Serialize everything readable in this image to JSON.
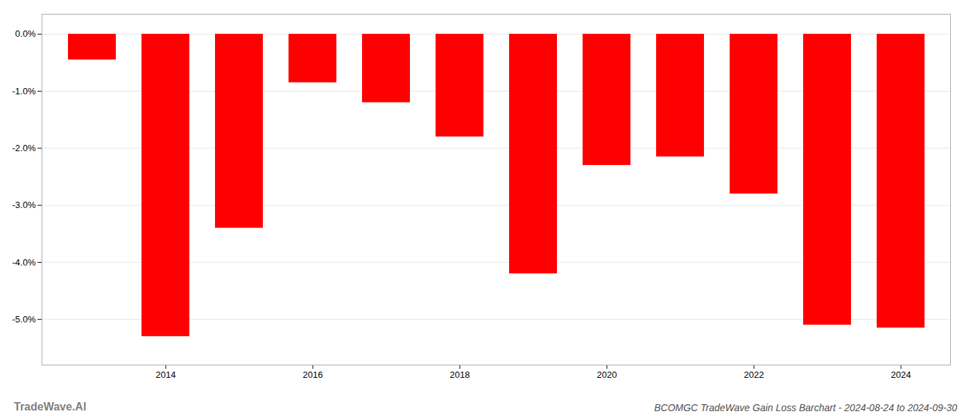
{
  "chart_data": {
    "type": "bar",
    "title": "BCOMGC TradeWave Gain Loss Barchart - 2024-08-24 to 2024-09-30",
    "annotations": [
      "TradeWave.AI"
    ],
    "categories": [
      null,
      "2014",
      null,
      "2016",
      null,
      "2018",
      null,
      "2020",
      null,
      "2022",
      null,
      "2024"
    ],
    "values": [
      -0.45,
      -5.3,
      -3.4,
      -0.85,
      -1.2,
      -1.8,
      -4.2,
      -2.3,
      -2.15,
      -2.8,
      -5.1,
      -5.15
    ],
    "color": "#ff0000",
    "ylim": [
      -5.8,
      0.35
    ],
    "yticks": [
      {
        "value": 0.0,
        "label": "0.0%"
      },
      {
        "value": -1.0,
        "label": "-1.0%"
      },
      {
        "value": -2.0,
        "label": "-2.0%"
      },
      {
        "value": -3.0,
        "label": "-3.0%"
      },
      {
        "value": -4.0,
        "label": "-4.0%"
      },
      {
        "value": -5.0,
        "label": "-5.0%"
      }
    ],
    "grid": true
  }
}
